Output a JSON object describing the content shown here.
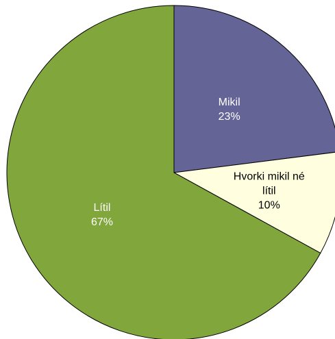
{
  "chart_data": {
    "type": "pie",
    "categories": [
      "Mikil",
      "Hvorki mikil né lítil",
      "Lítil"
    ],
    "values": [
      23,
      10,
      67
    ],
    "value_labels": [
      "23%",
      "10%",
      "67%"
    ],
    "colors": [
      "#646496",
      "#ffffe0",
      "#80a63c"
    ],
    "label_colors": [
      "#ffffff",
      "#000000",
      "#ffffff"
    ],
    "start_angle": 0,
    "direction": "clockwise"
  }
}
